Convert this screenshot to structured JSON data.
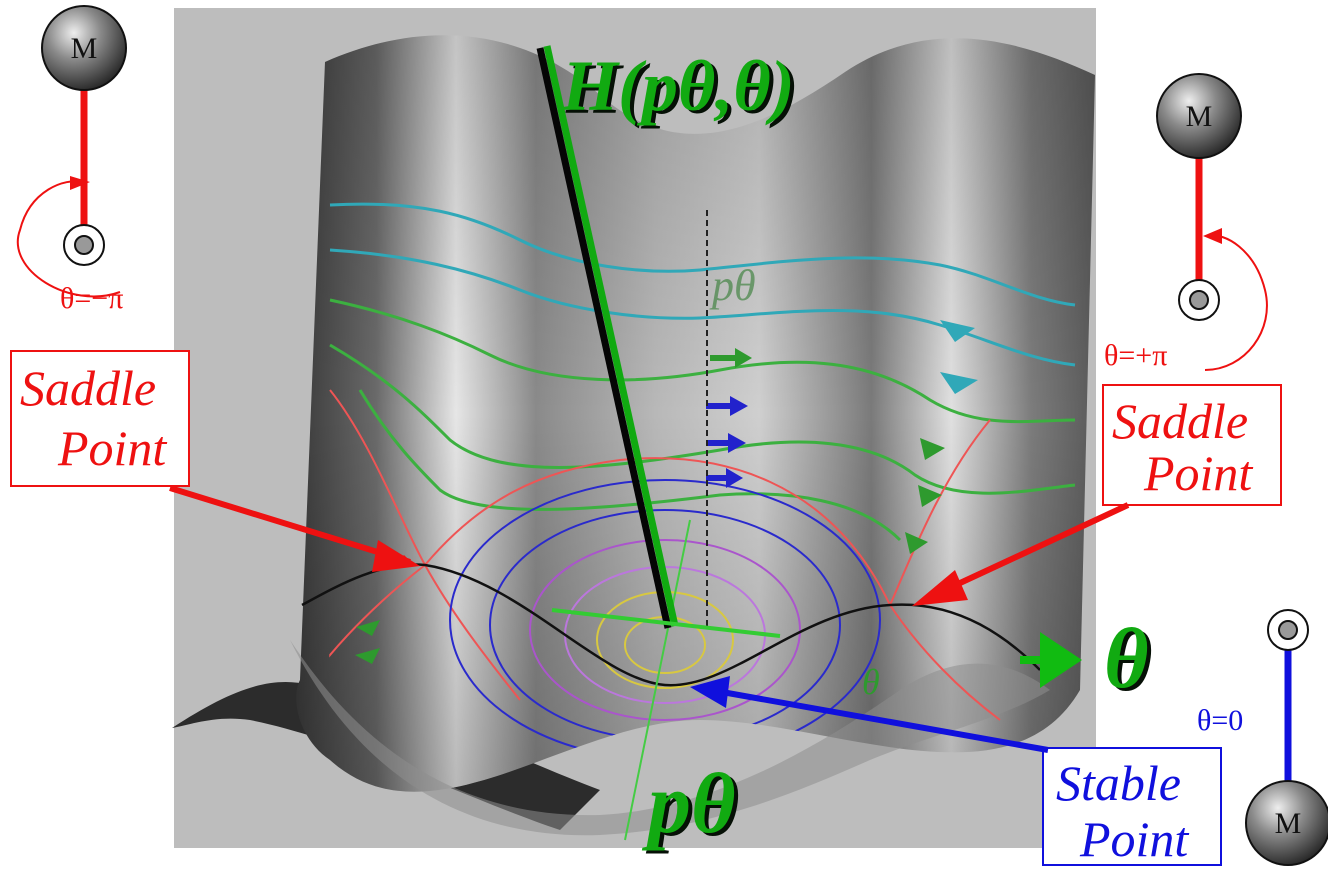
{
  "axes": {
    "hamiltonian_label": "H(pθ,θ)",
    "theta_label": "θ",
    "p_theta_label": "pθ",
    "small_p_theta": "pθ",
    "small_theta": "θ"
  },
  "annotations": {
    "saddle_left": {
      "line1": "Saddle",
      "line2": "Point"
    },
    "saddle_right": {
      "line1": "Saddle",
      "line2": "Point"
    },
    "stable": {
      "line1": "Stable",
      "line2": "Point"
    }
  },
  "pendulums": {
    "left": {
      "mass": "M",
      "angle_label": "θ=−π"
    },
    "right": {
      "mass": "M",
      "angle_label": "θ=+π"
    },
    "bottom": {
      "mass": "M",
      "angle_label": "θ=0"
    }
  },
  "colors": {
    "saddle": "#ee1111",
    "stable": "#1010dd",
    "axis": "#11aa11",
    "contour_cyan": "#30a8b8",
    "contour_green": "#3cb040",
    "contour_blue": "#2222cc",
    "contour_purple": "#aa55cc",
    "contour_yellow": "#d8c840"
  }
}
